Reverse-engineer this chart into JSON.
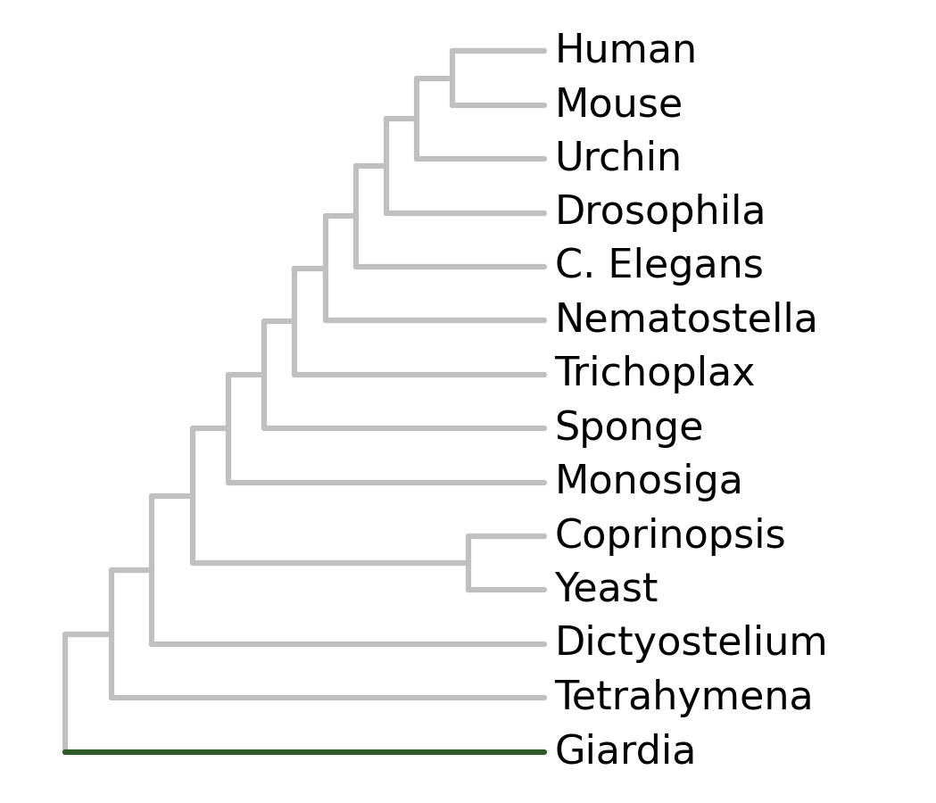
{
  "taxa": [
    "Human",
    "Mouse",
    "Urchin",
    "Drosophila",
    "C. Elegans",
    "Nematostella",
    "Trichoplax",
    "Sponge",
    "Monosiga",
    "Coprinopsis",
    "Yeast",
    "Dictyostelium",
    "Tetrahymena",
    "Giardia"
  ],
  "tree_color": "#c0c0c0",
  "giardia_color": "#2d5a27",
  "line_width": 4.5,
  "font_size": 32,
  "background_color": "#ffffff",
  "figsize": [
    10.49,
    9.0
  ]
}
